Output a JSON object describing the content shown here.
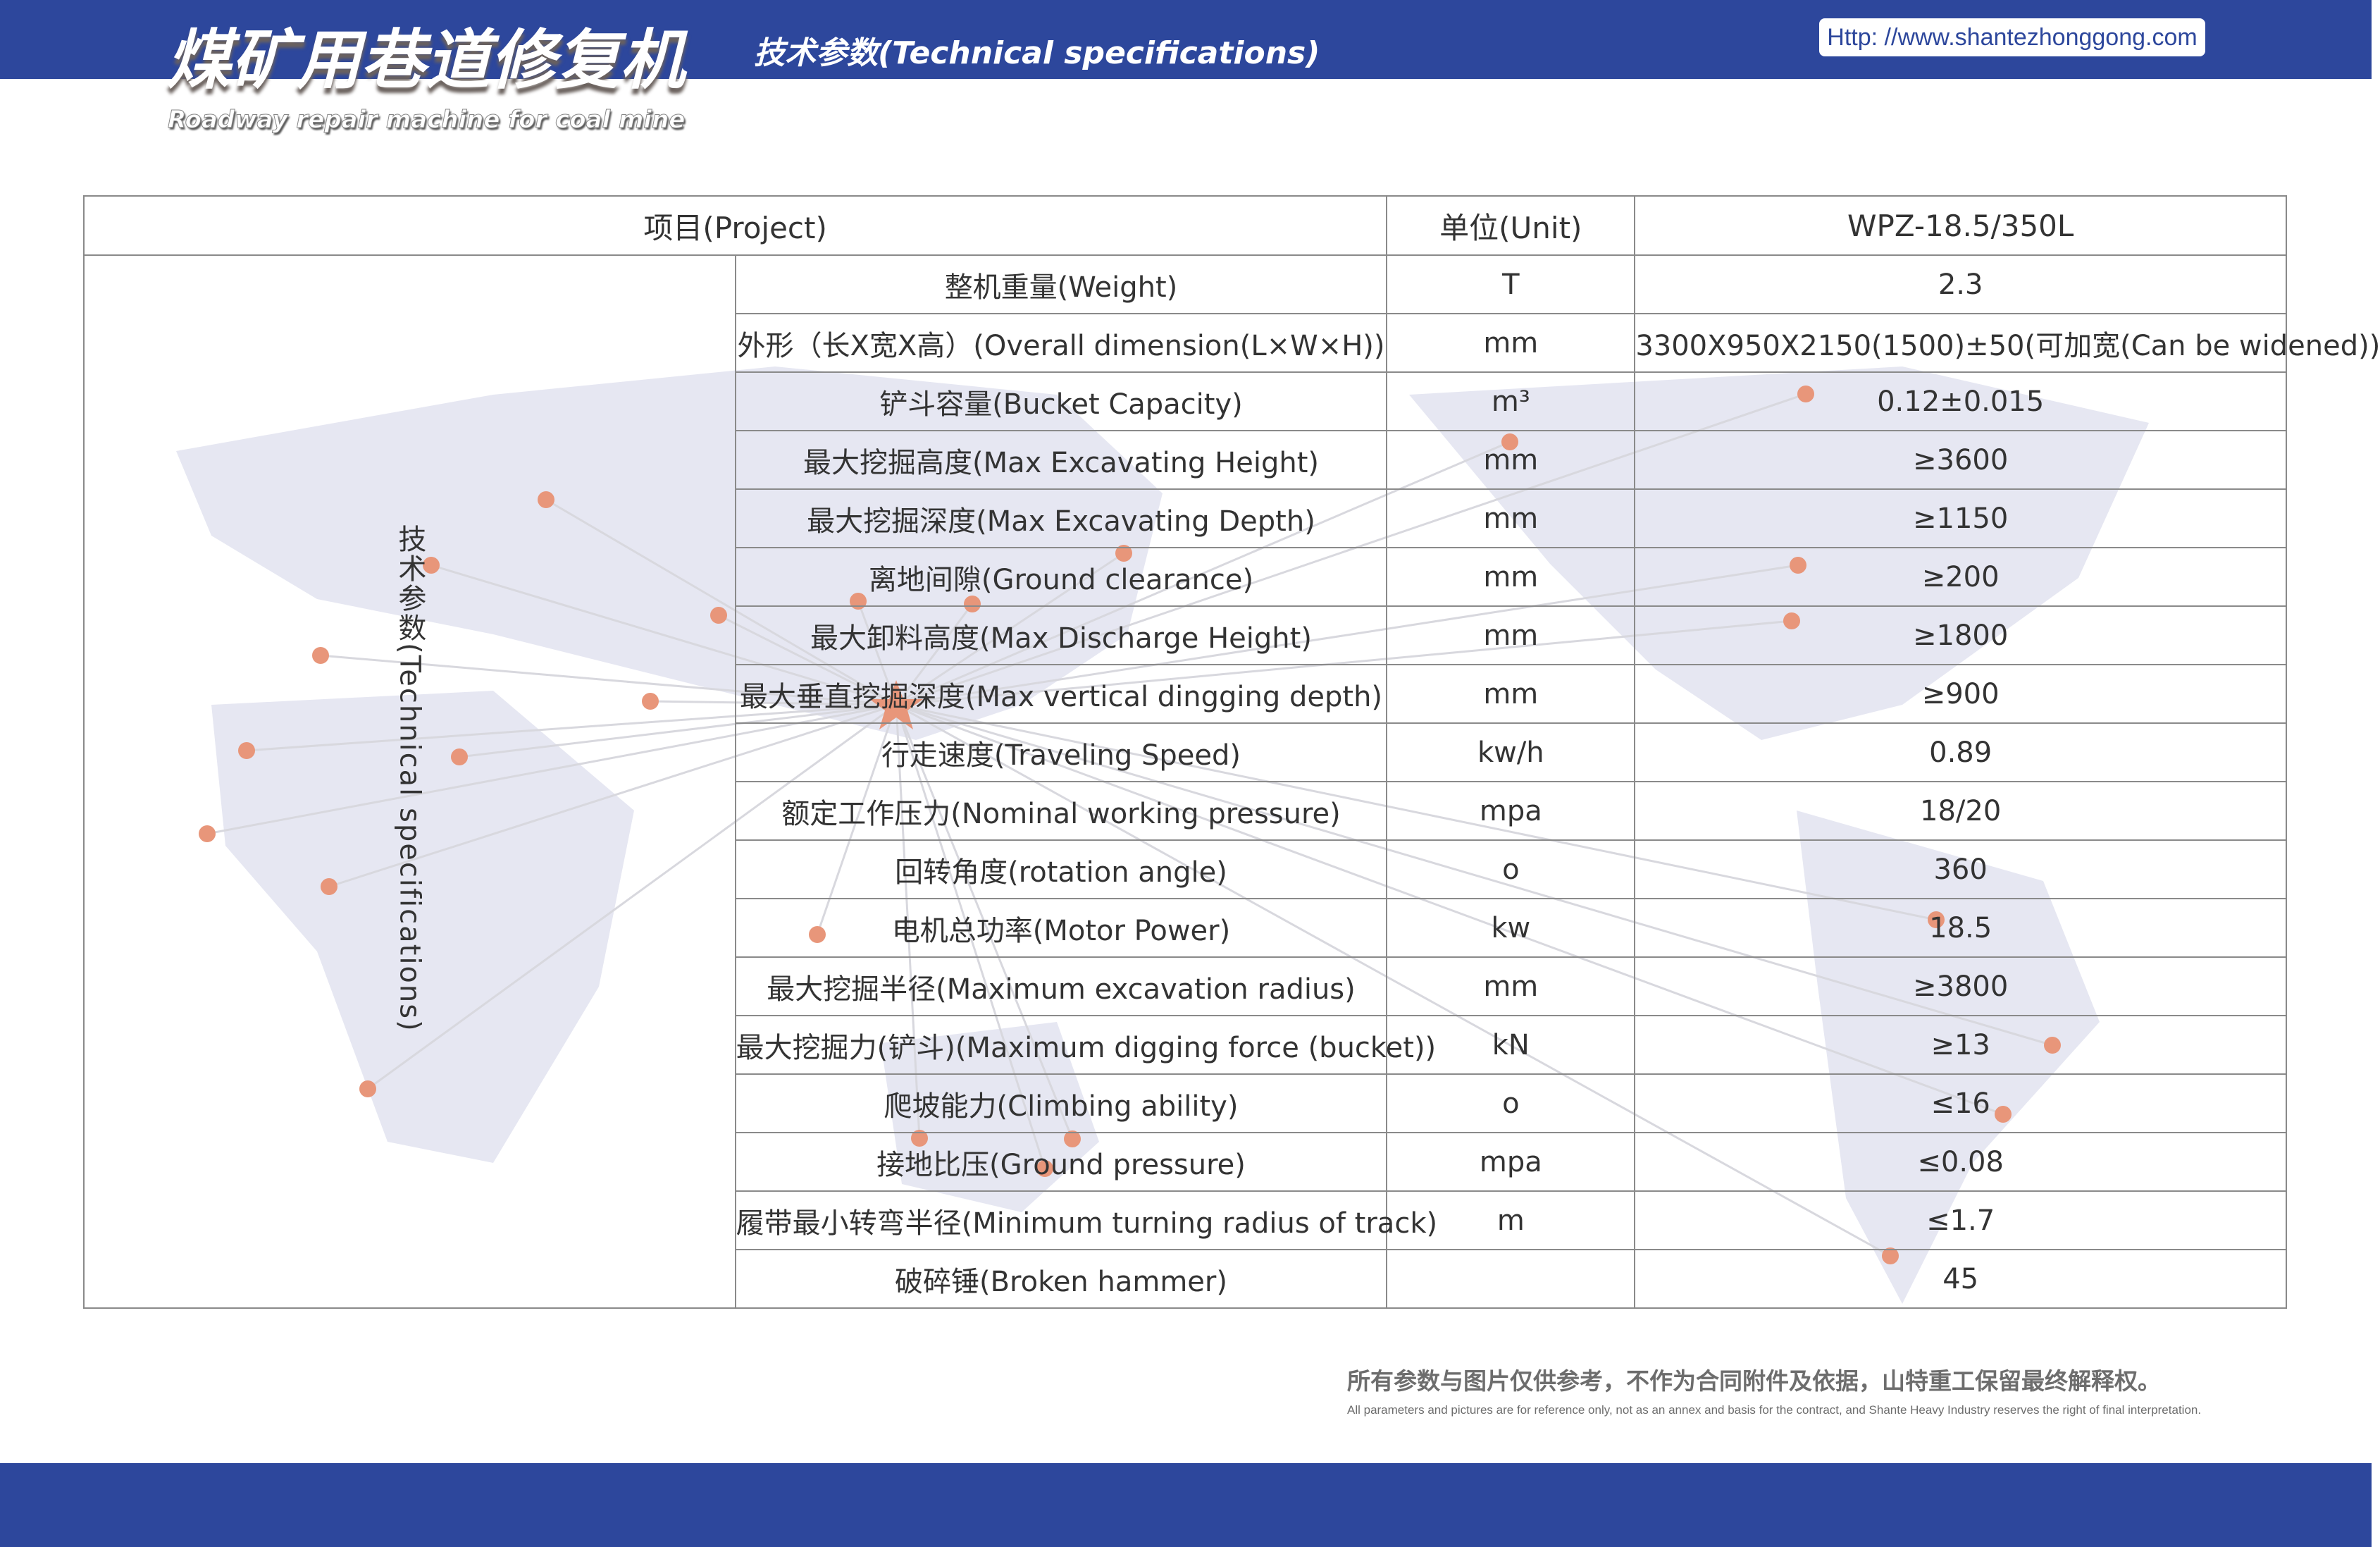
{
  "header": {
    "title_cn": "煤矿用巷道修复机",
    "title_en": "Roadway repair machine for coal mine",
    "subtitle": "技术参数(Technical specifications)",
    "url": "Http: //www.shantezhonggong.com",
    "brand_color": "#2d479c"
  },
  "table": {
    "headers": {
      "project": "项目(Project)",
      "unit": "单位(Unit)",
      "model": "WPZ-18.5/350L"
    },
    "side_label": "技术参数(Technical specifications)",
    "rows": [
      {
        "project": "整机重量(Weight)",
        "unit": "T",
        "value": "2.3"
      },
      {
        "project": "外形（长X宽X高）(Overall dimension(L×W×H))",
        "unit": "mm",
        "value": "3300X950X2150(1500)±50(可加宽(Can be widened))"
      },
      {
        "project": "铲斗容量(Bucket Capacity)",
        "unit": "m³",
        "value": "0.12±0.015"
      },
      {
        "project": "最大挖掘高度(Max Excavating Height)",
        "unit": "mm",
        "value": "≥3600"
      },
      {
        "project": "最大挖掘深度(Max Excavating Depth)",
        "unit": "mm",
        "value": "≥1150"
      },
      {
        "project": "离地间隙(Ground clearance)",
        "unit": "mm",
        "value": "≥200"
      },
      {
        "project": "最大卸料高度(Max Discharge Height)",
        "unit": "mm",
        "value": "≥1800"
      },
      {
        "project": "最大垂直挖掘深度(Max vertical dingging depth)",
        "unit": "mm",
        "value": "≥900"
      },
      {
        "project": "行走速度(Traveling Speed)",
        "unit": "kw/h",
        "value": "0.89"
      },
      {
        "project": "额定工作压力(Nominal working pressure)",
        "unit": "mpa",
        "value": "18/20"
      },
      {
        "project": "回转角度(rotation angle)",
        "unit": "o",
        "value": "360"
      },
      {
        "project": "电机总功率(Motor Power)",
        "unit": "kw",
        "value": "18.5"
      },
      {
        "project": "最大挖掘半径(Maximum excavation radius)",
        "unit": "mm",
        "value": "≥3800"
      },
      {
        "project": "最大挖掘力(铲斗)(Maximum digging force (bucket))",
        "unit": "kN",
        "value": "≥13"
      },
      {
        "project": "爬坡能力(Climbing ability)",
        "unit": "o",
        "value": "≤16"
      },
      {
        "project": "接地比压(Ground pressure)",
        "unit": "mpa",
        "value": "≤0.08"
      },
      {
        "project": "履带最小转弯半径(Minimum turning radius of track)",
        "unit": "m",
        "value": "≤1.7"
      },
      {
        "project": "破碎锤(Broken hammer)",
        "unit": "",
        "value": "45"
      }
    ]
  },
  "disclaimer": {
    "cn": "所有参数与图片仅供参考，不作为合同附件及依据，山特重工保留最终解释权。",
    "en": "All parameters and pictures are for reference only, not as an annex and basis for the contract, and Shante Heavy Industry reserves the right of final interpretation."
  },
  "map_dot_color": "#e8967a",
  "map_land_color": "#e4e5f1"
}
